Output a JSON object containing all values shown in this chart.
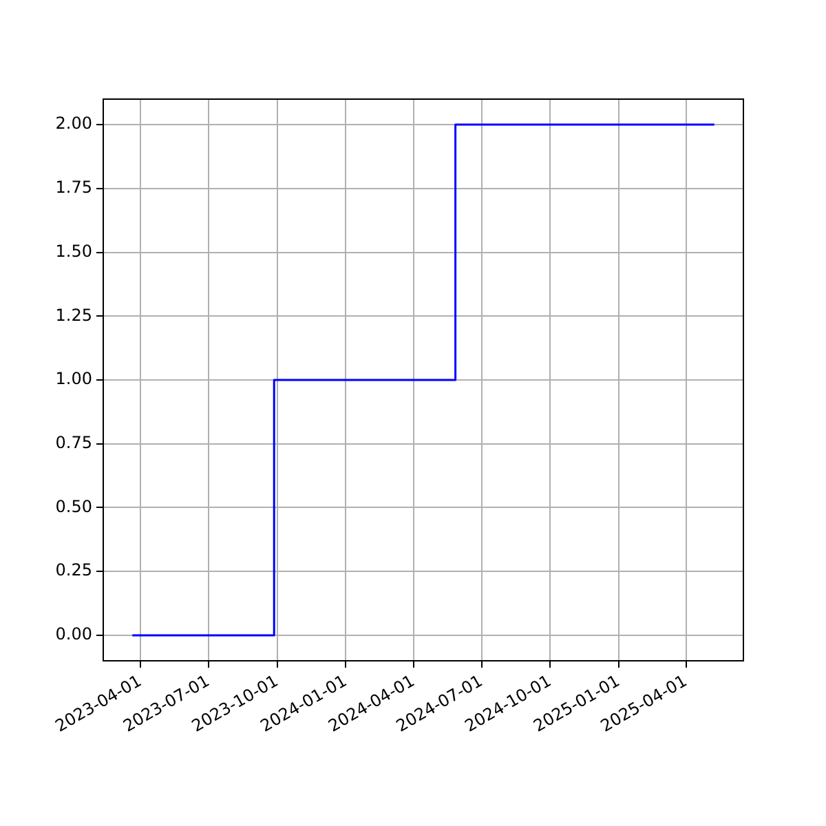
{
  "chart_data": {
    "type": "step",
    "x": [
      "2023-03-21",
      "2023-09-27",
      "2024-05-27",
      "2025-05-09"
    ],
    "series": [
      {
        "color": "#0000ff",
        "values": [
          0,
          1,
          2,
          2
        ]
      }
    ],
    "xlim": [
      "2023-02-10",
      "2025-06-17"
    ],
    "xticks": [
      "2023-04-01",
      "2023-07-01",
      "2023-10-01",
      "2024-01-01",
      "2024-04-01",
      "2024-07-01",
      "2024-10-01",
      "2025-01-01",
      "2025-04-01"
    ],
    "ylim": [
      -0.1,
      2.1
    ],
    "yticks": [
      {
        "value": 0,
        "label": "0.00"
      },
      {
        "value": 0.25,
        "label": "0.25"
      },
      {
        "value": 0.5,
        "label": "0.50"
      },
      {
        "value": 0.75,
        "label": "0.75"
      },
      {
        "value": 1,
        "label": "1.00"
      },
      {
        "value": 1.25,
        "label": "1.25"
      },
      {
        "value": 1.5,
        "label": "1.50"
      },
      {
        "value": 1.75,
        "label": "1.75"
      },
      {
        "value": 2,
        "label": "2.00"
      }
    ],
    "grid": true,
    "legend": false
  }
}
